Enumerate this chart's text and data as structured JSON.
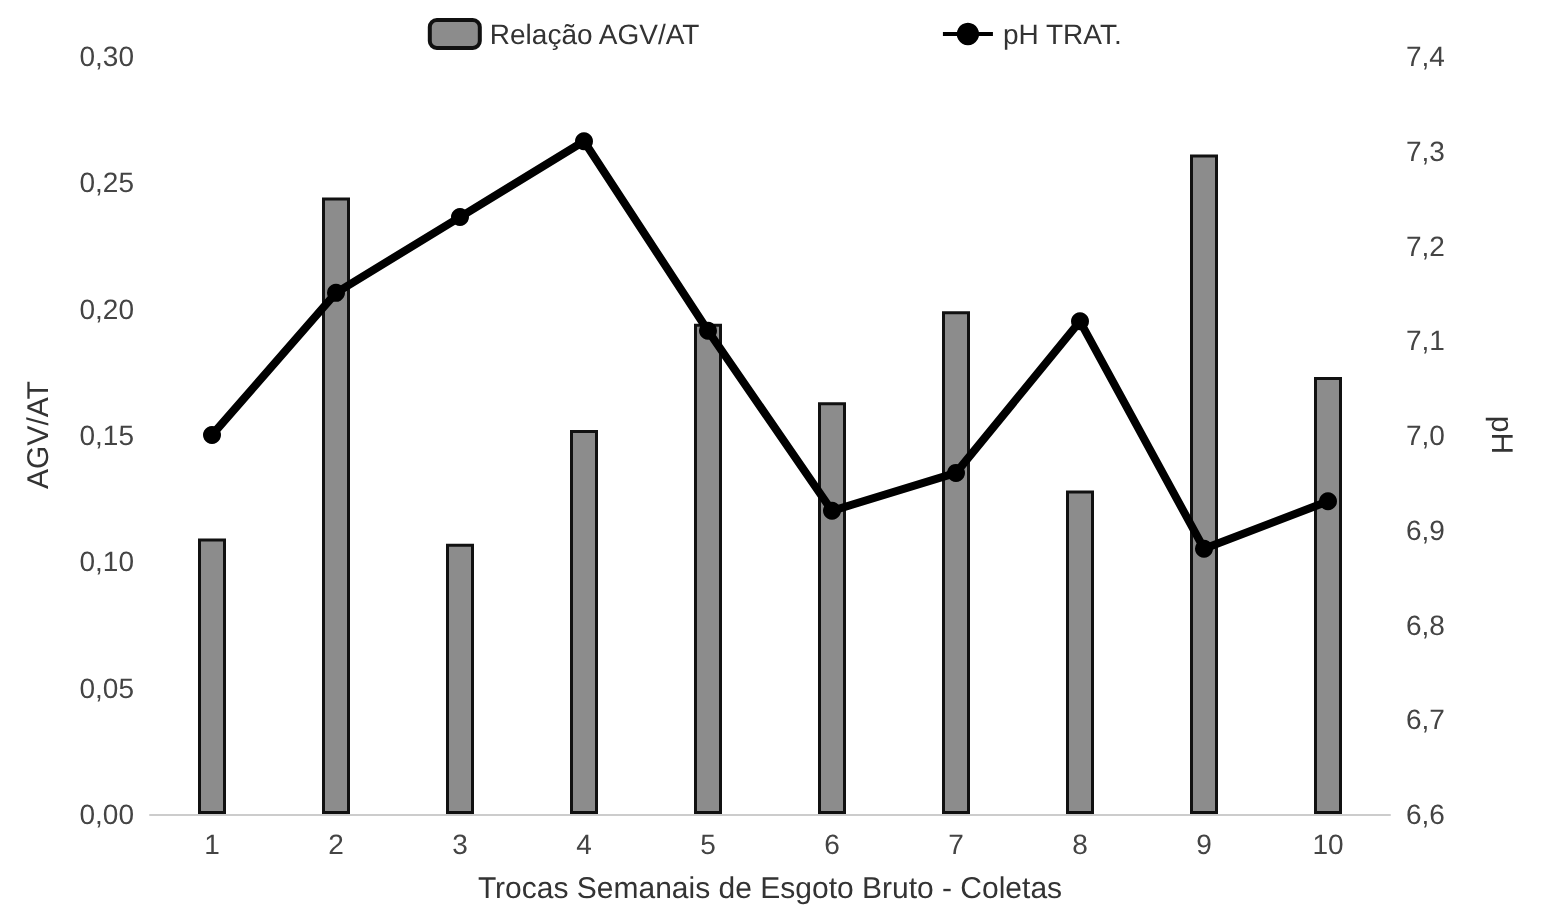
{
  "chart_data": {
    "type": "bar",
    "xlabel": "Trocas Semanais de Esgoto Bruto - Coletas",
    "ylabel": "AGV/AT",
    "y2label": "pH",
    "categories": [
      "1",
      "2",
      "3",
      "4",
      "5",
      "6",
      "7",
      "8",
      "9",
      "10"
    ],
    "series": [
      {
        "name": "Relação AGV/AT",
        "color": "#8c8c8c",
        "values": [
          0.109,
          0.244,
          0.107,
          0.152,
          0.194,
          0.163,
          0.199,
          0.128,
          0.261,
          0.173
        ]
      },
      {
        "name": "pH TRAT.",
        "type": "line",
        "axis": "y2",
        "color": "#000000",
        "marker": "circle",
        "values": [
          7.0,
          7.15,
          7.23,
          7.31,
          7.11,
          6.92,
          6.96,
          7.12,
          6.88,
          6.93
        ]
      }
    ],
    "ylim": [
      0,
      0.3
    ],
    "yticks": [
      {
        "value": 0,
        "label": "0,00"
      },
      {
        "value": 0.05,
        "label": "0,05"
      },
      {
        "value": 0.1,
        "label": "0,10"
      },
      {
        "value": 0.15,
        "label": "0,15"
      },
      {
        "value": 0.2,
        "label": "0,20"
      },
      {
        "value": 0.25,
        "label": "0,25"
      },
      {
        "value": 0.3,
        "label": "0,30"
      }
    ],
    "y2lim": [
      6.6,
      7.4
    ],
    "y2ticks": [
      {
        "value": 6.6,
        "label": "6,6"
      },
      {
        "value": 6.7,
        "label": "6,7"
      },
      {
        "value": 6.8,
        "label": "6,8"
      },
      {
        "value": 6.9,
        "label": "6,9"
      },
      {
        "value": 7.0,
        "label": "7,0"
      },
      {
        "value": 7.1,
        "label": "7,1"
      },
      {
        "value": 7.2,
        "label": "7,2"
      },
      {
        "value": 7.3,
        "label": "7,3"
      },
      {
        "value": 7.4,
        "label": "7,4"
      }
    ],
    "grid": false,
    "legend": "top"
  }
}
